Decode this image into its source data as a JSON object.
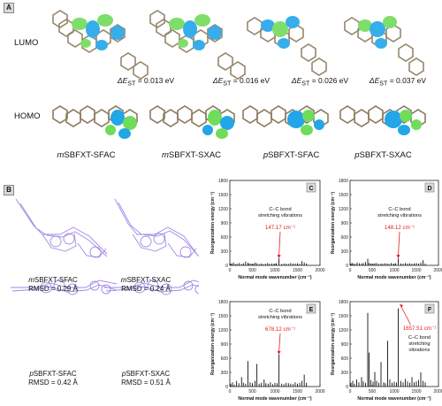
{
  "panel_labels": [
    "A",
    "B",
    "C",
    "D",
    "E",
    "F"
  ],
  "panel_a": {
    "row_lumo": "LUMO",
    "row_homo": "HOMO",
    "delta_prefix": "ΔE",
    "delta_sub": "ST",
    "delta_values": [
      "= 0.013 eV",
      "= 0.016 eV",
      "= 0.026 eV",
      "= 0.037 eV"
    ],
    "molecules": [
      {
        "prefix": "m",
        "rest": "SBFXT-SFAC"
      },
      {
        "prefix": "m",
        "rest": "SBFXT-SXAC"
      },
      {
        "prefix": "p",
        "rest": "SBFXT-SFAC"
      },
      {
        "prefix": "p",
        "rest": "SBFXT-SXAC"
      }
    ]
  },
  "panel_b": {
    "items": [
      {
        "prefix": "m",
        "rest": "SBFXT-SFAC",
        "rmsd": "RMSD = 0.29 Å"
      },
      {
        "prefix": "m",
        "rest": "SBFXT-SXAC",
        "rmsd": "RMSD = 0.24 Å"
      },
      {
        "prefix": "p",
        "rest": "SBFXT-SFAC",
        "rmsd": "RMSD = 0.42 Å"
      },
      {
        "prefix": "p",
        "rest": "SBFXT-SXAC",
        "rmsd": "RMSD = 0.51 Å"
      }
    ]
  },
  "colors": {
    "bar": "#111111",
    "annotation": "#e02020",
    "homo_blue": "#22a6e8",
    "lumo_green": "#6fdc5a",
    "rmsd_overlay": "#8a6be0"
  },
  "chart_data": [
    {
      "panel": "C",
      "type": "bar",
      "ylabel": "Reorganization energy (cm⁻¹)",
      "xlabel": "Normal mode wavenumber (cm⁻¹)",
      "ylim": [
        0,
        1800
      ],
      "xlim": [
        0,
        2000
      ],
      "yticks": [
        0,
        300,
        600,
        900,
        1200,
        1500,
        1800
      ],
      "xticks": [
        0,
        500,
        1000,
        1500,
        2000
      ],
      "annotation_text": [
        "C–C bond",
        "stretching vibrations"
      ],
      "peak_label": "147.17 cm⁻¹",
      "peak_x": 1090,
      "peak_y": 147,
      "x": [
        20,
        45,
        80,
        120,
        160,
        210,
        260,
        300,
        350,
        400,
        430,
        470,
        520,
        560,
        600,
        650,
        700,
        740,
        790,
        840,
        880,
        930,
        980,
        1030,
        1090,
        1150,
        1200,
        1250,
        1300,
        1350,
        1400,
        1450,
        1500,
        1550,
        1600,
        1650,
        1700
      ],
      "y": [
        40,
        30,
        60,
        25,
        35,
        50,
        30,
        45,
        80,
        55,
        40,
        35,
        30,
        60,
        45,
        30,
        40,
        25,
        35,
        50,
        30,
        40,
        35,
        45,
        147,
        30,
        40,
        35,
        30,
        50,
        35,
        40,
        45,
        30,
        90,
        60,
        40
      ]
    },
    {
      "panel": "D",
      "type": "bar",
      "ylabel": "Reorganization energy (cm⁻¹)",
      "xlabel": "Normal mode wavenumber (cm⁻¹)",
      "ylim": [
        0,
        1800
      ],
      "xlim": [
        0,
        2000
      ],
      "yticks": [
        0,
        300,
        600,
        900,
        1200,
        1500,
        1800
      ],
      "xticks": [
        0,
        500,
        1000,
        1500,
        2000
      ],
      "annotation_text": [
        "C–C bond",
        "stretching vibrations"
      ],
      "peak_label": "148.12 cm⁻¹",
      "peak_x": 1090,
      "peak_y": 148,
      "x": [
        20,
        45,
        80,
        120,
        160,
        210,
        260,
        300,
        350,
        400,
        430,
        470,
        520,
        560,
        600,
        650,
        700,
        740,
        790,
        840,
        880,
        930,
        980,
        1030,
        1090,
        1150,
        1200,
        1250,
        1300,
        1350,
        1400,
        1450,
        1500,
        1550,
        1600,
        1650,
        1700
      ],
      "y": [
        35,
        50,
        40,
        30,
        60,
        45,
        40,
        50,
        70,
        140,
        50,
        40,
        35,
        45,
        50,
        30,
        40,
        35,
        45,
        40,
        30,
        50,
        35,
        45,
        148,
        40,
        35,
        50,
        40,
        45,
        35,
        40,
        50,
        35,
        60,
        110,
        40
      ]
    },
    {
      "panel": "E",
      "type": "bar",
      "ylabel": "Reorganization energy (cm⁻¹)",
      "xlabel": "Normal mode wavenumber (cm⁻¹)",
      "ylim": [
        0,
        1800
      ],
      "xlim": [
        0,
        2000
      ],
      "yticks": [
        0,
        300,
        600,
        900,
        1200,
        1500,
        1800
      ],
      "xticks": [
        0,
        500,
        1000,
        1500,
        2000
      ],
      "annotation_text": [
        "C–C bond",
        "stretching vibrations"
      ],
      "peak_label": "678.12 cm⁻¹",
      "peak_x": 1090,
      "peak_y": 678,
      "x": [
        20,
        60,
        100,
        150,
        200,
        260,
        300,
        350,
        400,
        450,
        500,
        560,
        600,
        650,
        700,
        760,
        800,
        850,
        900,
        950,
        1000,
        1050,
        1090,
        1150,
        1200,
        1250,
        1300,
        1350,
        1400,
        1450,
        1500,
        1550,
        1600,
        1650,
        1700
      ],
      "y": [
        60,
        90,
        40,
        120,
        70,
        200,
        80,
        60,
        540,
        90,
        70,
        120,
        480,
        60,
        80,
        150,
        70,
        60,
        90,
        50,
        80,
        70,
        678,
        60,
        50,
        80,
        70,
        60,
        50,
        90,
        60,
        80,
        120,
        250,
        80
      ]
    },
    {
      "panel": "F",
      "type": "bar",
      "ylabel": "Reorganization energy (cm⁻¹)",
      "xlabel": "Normal mode wavenumber (cm⁻¹)",
      "ylim": [
        0,
        1800
      ],
      "xlim": [
        0,
        2000
      ],
      "yticks": [
        0,
        300,
        600,
        900,
        1200,
        1500,
        1800
      ],
      "xticks": [
        0,
        500,
        1000,
        1500,
        2000
      ],
      "annotation_text": [
        "C–C bond",
        "stretching",
        "vibrations"
      ],
      "peak_label": "1657.51 cm⁻¹",
      "peak_x": 1090,
      "peak_y": 1657,
      "x": [
        20,
        60,
        100,
        150,
        200,
        260,
        300,
        350,
        400,
        430,
        470,
        520,
        560,
        600,
        650,
        700,
        760,
        800,
        850,
        900,
        950,
        1000,
        1050,
        1090,
        1150,
        1200,
        1250,
        1300,
        1350,
        1400,
        1450,
        1500,
        1550,
        1600,
        1650,
        1700
      ],
      "y": [
        80,
        120,
        60,
        150,
        90,
        200,
        110,
        80,
        1560,
        720,
        140,
        100,
        310,
        120,
        80,
        520,
        90,
        70,
        970,
        150,
        80,
        100,
        90,
        1657,
        120,
        90,
        160,
        110,
        80,
        200,
        90,
        110,
        140,
        300,
        120,
        90
      ]
    }
  ]
}
